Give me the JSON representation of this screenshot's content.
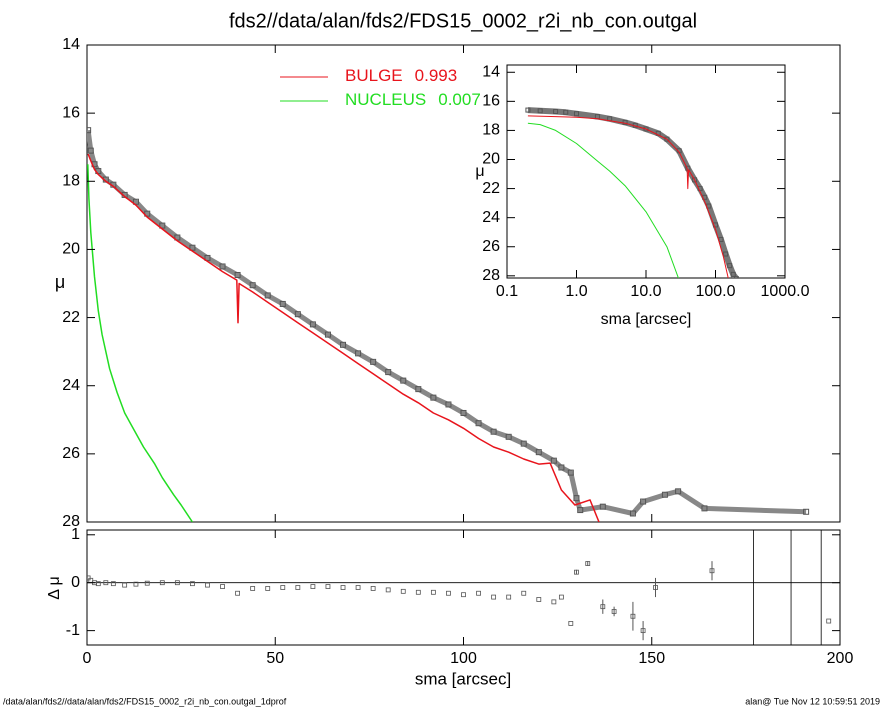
{
  "chart_data": [
    {
      "type": "line",
      "title": "fds2//data/alan/fds2/FDS15_0002_r2i_nb_con.outgal",
      "ylabel": "μ",
      "xlim": [
        0,
        200
      ],
      "xticks": [
        0,
        50,
        100,
        150,
        200
      ],
      "ylim": [
        14,
        28
      ],
      "yticks": [
        14,
        16,
        18,
        20,
        22,
        24,
        26,
        28
      ],
      "points": {
        "color": "#555555",
        "x": [
          0.3,
          1,
          2,
          3,
          5,
          7,
          10,
          13,
          16,
          20,
          24,
          28,
          32,
          36,
          40,
          44,
          48,
          52,
          56,
          60,
          64,
          68,
          72,
          76,
          80,
          84,
          88,
          92,
          96,
          100,
          104,
          108,
          112,
          116,
          120,
          124,
          126,
          128.5,
          130,
          131,
          137,
          145,
          147.7,
          153.5,
          157,
          164,
          191
        ],
        "values": [
          16.5,
          17.1,
          17.5,
          17.7,
          17.95,
          18.1,
          18.4,
          18.6,
          18.95,
          19.3,
          19.65,
          19.95,
          20.25,
          20.5,
          20.75,
          21.05,
          21.35,
          21.6,
          21.9,
          22.2,
          22.5,
          22.8,
          23.05,
          23.3,
          23.6,
          23.85,
          24.1,
          24.35,
          24.55,
          24.8,
          25.1,
          25.35,
          25.5,
          25.7,
          25.95,
          26.2,
          26.4,
          26.55,
          27.3,
          27.65,
          27.55,
          27.75,
          27.4,
          27.2,
          27.1,
          27.6,
          27.7
        ]
      },
      "series": [
        {
          "name": "BULGE",
          "fraction": 0.993,
          "color": "#e8141c",
          "x": [
            0.3,
            1,
            2,
            3,
            5,
            7,
            10,
            13,
            16,
            20,
            24,
            28,
            32,
            36,
            39.8,
            40.1,
            40.4,
            44,
            48,
            52,
            56,
            60,
            64,
            68,
            72,
            76,
            80,
            84,
            88,
            92,
            96,
            100,
            104,
            108,
            112,
            116,
            120,
            123,
            126,
            129.6,
            133.6,
            136
          ],
          "values": [
            17.2,
            17.4,
            17.65,
            17.8,
            18.0,
            18.15,
            18.45,
            18.7,
            19.05,
            19.4,
            19.75,
            20.05,
            20.35,
            20.65,
            20.9,
            22.15,
            21.0,
            21.25,
            21.55,
            21.85,
            22.15,
            22.45,
            22.75,
            23.05,
            23.35,
            23.65,
            23.95,
            24.25,
            24.5,
            24.8,
            25.0,
            25.25,
            25.55,
            25.8,
            25.95,
            26.15,
            26.3,
            26.27,
            27.06,
            27.5,
            27.35,
            28.0
          ]
        },
        {
          "name": "NUCLEUS",
          "fraction": 0.007,
          "color": "#22dd22",
          "x": [
            0.2,
            0.5,
            1,
            2,
            3,
            4,
            6,
            8,
            10,
            12,
            15,
            18,
            20,
            23,
            25,
            28
          ],
          "values": [
            17.5,
            18.5,
            19.5,
            20.8,
            21.8,
            22.5,
            23.5,
            24.2,
            24.8,
            25.2,
            25.8,
            26.3,
            26.7,
            27.2,
            27.5,
            28.0
          ]
        }
      ]
    },
    {
      "type": "residual",
      "xlabel": "sma [arcsec]",
      "ylabel": "Δ μ",
      "xlim": [
        0,
        200
      ],
      "xticks": [
        0,
        50,
        100,
        150,
        200
      ],
      "ylim": [
        1.1,
        -1.3
      ],
      "yticks": [
        1,
        0,
        -1
      ],
      "color": "#555555",
      "x": [
        0.3,
        1,
        2,
        3,
        5,
        7,
        10,
        13,
        16,
        20,
        24,
        28,
        32,
        36,
        40,
        44,
        48,
        52,
        56,
        60,
        64,
        68,
        72,
        76,
        80,
        84,
        88,
        92,
        96,
        100,
        104,
        108,
        112,
        116,
        120,
        124,
        126,
        128.5,
        130,
        133,
        137,
        140,
        145,
        147.7,
        151,
        166,
        197
      ],
      "values": [
        0.1,
        0.05,
        0.0,
        -0.02,
        0.0,
        -0.02,
        -0.05,
        -0.03,
        -0.01,
        0.0,
        0.0,
        -0.02,
        -0.05,
        -0.08,
        -0.22,
        -0.12,
        -0.12,
        -0.1,
        -0.1,
        -0.08,
        -0.08,
        -0.1,
        -0.1,
        -0.12,
        -0.15,
        -0.18,
        -0.2,
        -0.2,
        -0.22,
        -0.25,
        -0.22,
        -0.3,
        -0.3,
        -0.22,
        -0.35,
        -0.4,
        -0.3,
        -0.85,
        0.22,
        0.4,
        -0.5,
        -0.6,
        -0.7,
        -1.0,
        -0.1,
        0.25,
        -0.8
      ],
      "errors": [
        null,
        null,
        null,
        null,
        null,
        null,
        null,
        null,
        null,
        null,
        null,
        null,
        null,
        null,
        null,
        null,
        null,
        null,
        null,
        null,
        null,
        null,
        null,
        null,
        null,
        null,
        null,
        null,
        null,
        null,
        null,
        null,
        null,
        null,
        null,
        null,
        null,
        null,
        0.05,
        0.05,
        0.15,
        0.1,
        0.3,
        0.2,
        0.2,
        0.2,
        null
      ],
      "vlines": [
        177,
        187,
        195
      ]
    },
    {
      "type": "loglog",
      "xlabel": "sma [arcsec]",
      "ylabel": "μ",
      "xscale": "log",
      "xlim": [
        0.1,
        1000
      ],
      "xticks": [
        {
          "value": 0.1,
          "label": "0.1"
        },
        {
          "value": 1,
          "label": "1.0"
        },
        {
          "value": 10,
          "label": "10.0"
        },
        {
          "value": 100,
          "label": "100.0"
        },
        {
          "value": 1000,
          "label": "1000.0"
        }
      ],
      "ylim": [
        13.5,
        28.15
      ],
      "yticks": [
        14,
        16,
        18,
        20,
        22,
        24,
        26,
        28
      ],
      "points": {
        "color": "#555555",
        "x": [
          0.2,
          0.3,
          0.5,
          0.7,
          1,
          2,
          3,
          5,
          7,
          10,
          15,
          20,
          30,
          40,
          50,
          60,
          70,
          80,
          100,
          120,
          140,
          160,
          180,
          200
        ],
        "values": [
          16.6,
          16.65,
          16.7,
          16.75,
          16.85,
          17.05,
          17.2,
          17.45,
          17.65,
          17.9,
          18.2,
          18.6,
          19.4,
          20.6,
          21.4,
          22.0,
          22.6,
          23.2,
          24.5,
          25.5,
          26.5,
          27.3,
          27.9,
          28.2
        ]
      },
      "series": [
        {
          "color": "#e8141c",
          "x": [
            0.2,
            0.5,
            1,
            2,
            5,
            10,
            20,
            30,
            39,
            40,
            41,
            50,
            70,
            100,
            130,
            160
          ],
          "values": [
            17.0,
            17.05,
            17.1,
            17.2,
            17.5,
            17.9,
            18.6,
            19.5,
            20.6,
            22.0,
            20.7,
            21.4,
            22.9,
            24.8,
            26.7,
            28.6
          ]
        },
        {
          "color": "#22dd22",
          "x": [
            0.2,
            0.3,
            0.5,
            1,
            2,
            3,
            5,
            10,
            20,
            30
          ],
          "values": [
            17.5,
            17.6,
            18.0,
            18.9,
            20.1,
            20.8,
            21.8,
            23.6,
            26.0,
            28.3
          ]
        }
      ]
    }
  ],
  "footer": {
    "left": "/data/alan/fds2//data/alan/fds2/FDS15_0002_r2i_nb_con.outgal_1dprof",
    "right": "alan@  Tue Nov 12 10:59:51 2019"
  }
}
